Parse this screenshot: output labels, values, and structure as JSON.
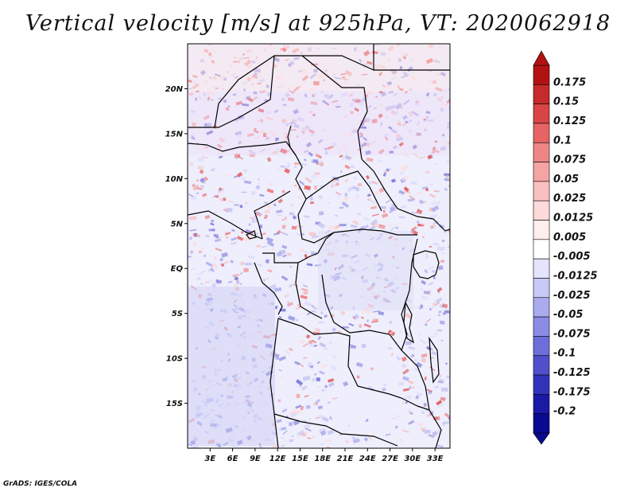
{
  "title": "Vertical velocity [m/s] at 925hPa, VT: 2020062918",
  "credit": "GrADS: IGES/COLA",
  "map": {
    "lon_range": [
      0,
      35
    ],
    "lat_range": [
      -20,
      25
    ],
    "lat_labels": [
      {
        "lat": 20,
        "text": "20N"
      },
      {
        "lat": 15,
        "text": "15N"
      },
      {
        "lat": 10,
        "text": "10N"
      },
      {
        "lat": 5,
        "text": "5N"
      },
      {
        "lat": 0,
        "text": "EQ"
      },
      {
        "lat": -5,
        "text": "5S"
      },
      {
        "lat": -10,
        "text": "10S"
      },
      {
        "lat": -15,
        "text": "15S"
      }
    ],
    "lon_labels": [
      {
        "lon": 3,
        "text": "3E"
      },
      {
        "lon": 6,
        "text": "6E"
      },
      {
        "lon": 9,
        "text": "9E"
      },
      {
        "lon": 12,
        "text": "12E"
      },
      {
        "lon": 15,
        "text": "15E"
      },
      {
        "lon": 18,
        "text": "18E"
      },
      {
        "lon": 21,
        "text": "21E"
      },
      {
        "lon": 24,
        "text": "24E"
      },
      {
        "lon": 27,
        "text": "27E"
      },
      {
        "lon": 30,
        "text": "30E"
      },
      {
        "lon": 33,
        "text": "33E"
      }
    ]
  },
  "colorbar": {
    "labels": [
      "0.175",
      "0.15",
      "0.125",
      "0.1",
      "0.075",
      "0.05",
      "0.025",
      "0.0125",
      "0.005",
      "-0.005",
      "-0.0125",
      "-0.025",
      "-0.05",
      "-0.075",
      "-0.1",
      "-0.125",
      "-0.175",
      "-0.2"
    ],
    "colors": [
      "#b31212",
      "#c62a2a",
      "#d94444",
      "#e66464",
      "#ef8585",
      "#f5a3a3",
      "#fac0c0",
      "#fdd9d9",
      "#ffeeee",
      "#ffffff",
      "#e4e4fc",
      "#c9c9f7",
      "#aaaaef",
      "#8c8ce6",
      "#6e6edb",
      "#5050cc",
      "#3232bb",
      "#1a1aa6",
      "#0a0a90"
    ]
  }
}
